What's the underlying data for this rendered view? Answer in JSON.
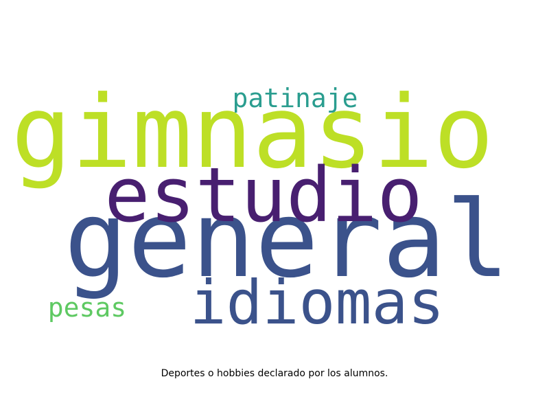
{
  "words": [
    {
      "text": "gimnasio",
      "weight": 0.92,
      "color": "#bddf26"
    },
    {
      "text": "general",
      "weight": 1.0,
      "color": "#3b528b"
    },
    {
      "text": "estudio",
      "weight": 0.75,
      "color": "#481f70"
    },
    {
      "text": "idiomas",
      "weight": 0.6,
      "color": "#3b528b"
    },
    {
      "text": "patinaje",
      "weight": 0.25,
      "color": "#2a9d8f"
    },
    {
      "text": "pesas",
      "weight": 0.25,
      "color": "#5ec962"
    }
  ],
  "caption": "Deportes o hobbies declarado por los alumnos."
}
